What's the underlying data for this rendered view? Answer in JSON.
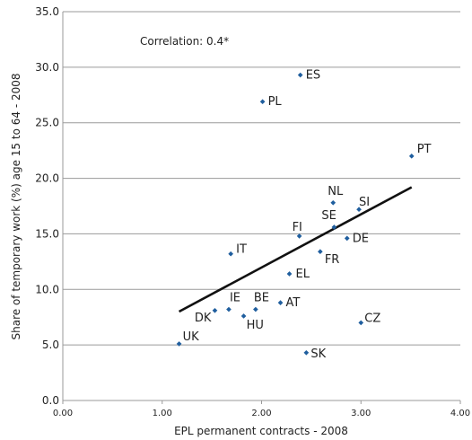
{
  "chart_data": {
    "type": "scatter",
    "title": "",
    "xlabel": "EPL permanent contracts - 2008",
    "ylabel": "Share of temporary work (%) age 15 to 64 - 2008",
    "xlim": [
      0,
      4
    ],
    "ylim": [
      0,
      35
    ],
    "x_ticks": [
      "0.00",
      "1.00",
      "2.00",
      "3.00",
      "4.00"
    ],
    "y_ticks": [
      "0.0",
      "5.0",
      "10.0",
      "15.0",
      "20.0",
      "25.0",
      "30.0",
      "35.0"
    ],
    "grid": "horizontal",
    "annotation": "Correlation: 0.4*",
    "marker_color": "#1f5e9e",
    "points": [
      {
        "label": "UK",
        "x": 1.17,
        "y": 5.1
      },
      {
        "label": "DK",
        "x": 1.53,
        "y": 8.1
      },
      {
        "label": "IE",
        "x": 1.67,
        "y": 8.2
      },
      {
        "label": "IT",
        "x": 1.69,
        "y": 13.2
      },
      {
        "label": "HU",
        "x": 1.82,
        "y": 7.6
      },
      {
        "label": "BE",
        "x": 1.94,
        "y": 8.2
      },
      {
        "label": "PL",
        "x": 2.01,
        "y": 26.9
      },
      {
        "label": "AT",
        "x": 2.19,
        "y": 8.8
      },
      {
        "label": "EL",
        "x": 2.28,
        "y": 11.4
      },
      {
        "label": "ES",
        "x": 2.39,
        "y": 29.3
      },
      {
        "label": "FI",
        "x": 2.38,
        "y": 14.8
      },
      {
        "label": "SK",
        "x": 2.45,
        "y": 4.3
      },
      {
        "label": "FR",
        "x": 2.59,
        "y": 13.4
      },
      {
        "label": "NL",
        "x": 2.72,
        "y": 17.8
      },
      {
        "label": "SE",
        "x": 2.73,
        "y": 15.6
      },
      {
        "label": "DE",
        "x": 2.86,
        "y": 14.6
      },
      {
        "label": "SI",
        "x": 2.98,
        "y": 17.2
      },
      {
        "label": "CZ",
        "x": 3.0,
        "y": 7.0
      },
      {
        "label": "PT",
        "x": 3.51,
        "y": 22.0
      }
    ],
    "trend_line": {
      "x": [
        1.17,
        3.51
      ],
      "y": [
        8.0,
        19.2
      ]
    }
  }
}
